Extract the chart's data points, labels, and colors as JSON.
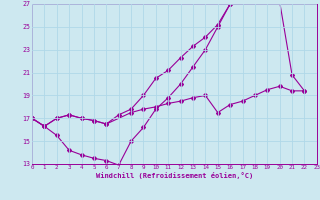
{
  "xlabel": "Windchill (Refroidissement éolien,°C)",
  "background_color": "#cde8f0",
  "line_color": "#990099",
  "grid_color": "#b0d8e8",
  "xlim": [
    0,
    23
  ],
  "ylim": [
    13,
    27
  ],
  "xticks": [
    0,
    1,
    2,
    3,
    4,
    5,
    6,
    7,
    8,
    9,
    10,
    11,
    12,
    13,
    14,
    15,
    16,
    17,
    18,
    19,
    20,
    21,
    22,
    23
  ],
  "yticks": [
    13,
    15,
    17,
    19,
    21,
    23,
    25,
    27
  ],
  "line1_x": [
    0,
    1,
    2,
    3,
    4,
    5,
    6,
    7,
    8,
    9,
    10,
    11,
    12,
    13,
    14,
    15,
    16,
    17,
    18,
    19,
    20,
    21,
    22
  ],
  "line1_y": [
    17,
    16.3,
    17.0,
    17.3,
    17.0,
    16.8,
    16.5,
    17.3,
    17.8,
    19.0,
    20.5,
    21.2,
    22.3,
    23.3,
    24.1,
    25.2,
    27.0,
    27.5,
    27.8,
    27.5,
    27.2,
    20.8,
    19.4
  ],
  "line2_x": [
    0,
    1,
    2,
    3,
    4,
    5,
    6,
    7,
    8,
    9,
    10,
    11,
    12,
    13,
    14,
    15,
    16,
    17,
    18,
    19
  ],
  "line2_y": [
    17,
    16.3,
    15.5,
    14.2,
    13.8,
    13.5,
    13.3,
    12.9,
    15.0,
    16.2,
    17.8,
    18.8,
    20.0,
    21.5,
    23.0,
    25.0,
    27.0,
    27.8,
    27.8,
    27.2
  ],
  "line3_x": [
    0,
    1,
    2,
    3,
    4,
    5,
    6,
    8,
    9,
    10,
    11,
    12,
    13,
    14,
    15,
    16,
    17,
    18,
    19,
    20,
    21,
    22
  ],
  "line3_y": [
    17,
    16.3,
    17.0,
    17.3,
    17.0,
    16.8,
    16.5,
    17.5,
    17.8,
    18.0,
    18.3,
    18.5,
    18.8,
    19.0,
    17.5,
    18.2,
    18.5,
    19.0,
    19.5,
    19.8,
    19.4,
    19.4
  ]
}
